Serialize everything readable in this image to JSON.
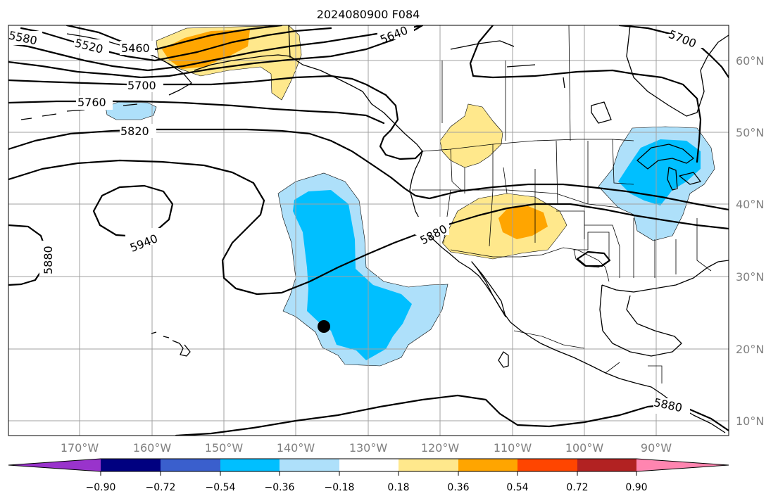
{
  "map": {
    "title": "2024080900 F084",
    "longitude_labels": [
      "170°W",
      "160°W",
      "150°W",
      "140°W",
      "130°W",
      "120°W",
      "110°W",
      "100°W",
      "90°W"
    ],
    "latitude_labels": [
      "60°N",
      "50°N",
      "40°N",
      "30°N",
      "20°N",
      "10°N"
    ],
    "contour_labels": {
      "c5580": "5580",
      "c5520": "5520",
      "c5460": "5460",
      "c5640": "5640",
      "c5700_west": "5700",
      "c5700_east": "5700",
      "c5760": "5760",
      "c5820": "5820",
      "c5940": "5940",
      "c5880_west": "5880",
      "c5880_mid": "5880",
      "c5880_south": "5880"
    },
    "marker": "point-marker"
  },
  "colorbar": {
    "tick_labels": [
      "−0.90",
      "−0.72",
      "−0.54",
      "−0.36",
      "−0.18",
      "0.18",
      "0.36",
      "0.54",
      "0.72",
      "0.90"
    ],
    "colors": [
      "#9933cc",
      "#000080",
      "#3a5fcd",
      "#00bfff",
      "#aee0fa",
      "#ffffff",
      "#ffe88c",
      "#ffa500",
      "#ff4500",
      "#b22222",
      "#ff85b0"
    ]
  }
}
